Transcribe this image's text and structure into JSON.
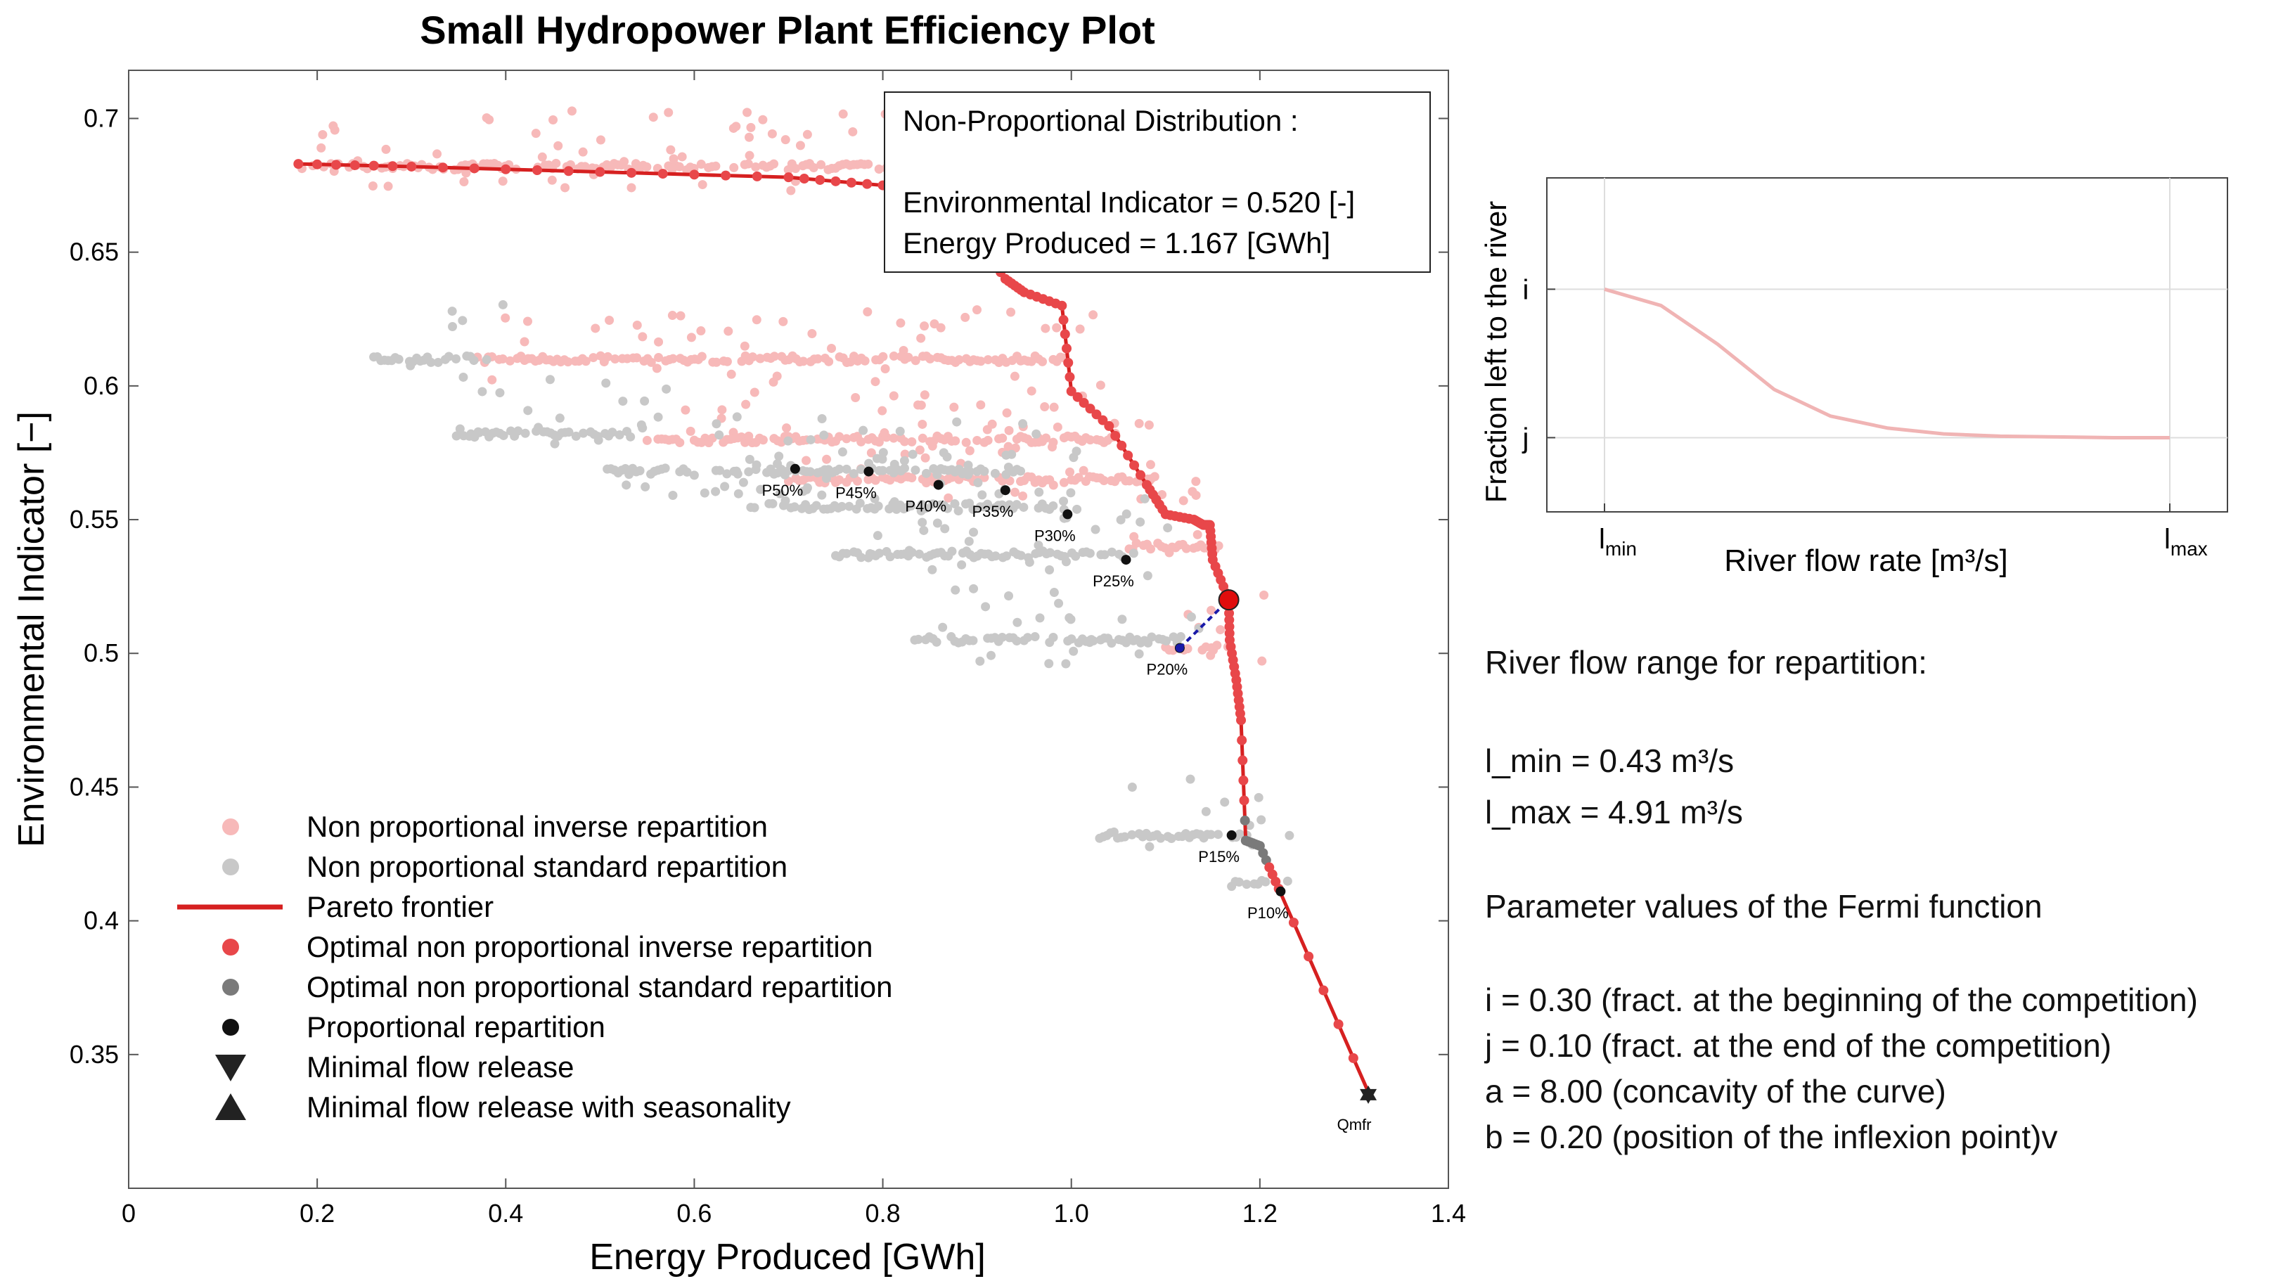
{
  "chart_data": [
    {
      "type": "scatter",
      "title": "Small Hydropower Plant Efficiency Plot",
      "xlabel": "Energy Produced [GWh]",
      "ylabel": "Environmental Indicator [−]",
      "xlim": [
        0,
        1.4
      ],
      "ylim": [
        0.3,
        0.718
      ],
      "xticks": [
        0,
        0.2,
        0.4,
        0.6,
        0.8,
        1.0,
        1.2,
        1.4
      ],
      "xtick_labels": [
        "0",
        "0.2",
        "0.4",
        "0.6",
        "0.8",
        "1.0",
        "1.2",
        "1.4"
      ],
      "yticks": [
        0.35,
        0.4,
        0.45,
        0.5,
        0.55,
        0.6,
        0.65,
        0.7
      ],
      "ytick_labels": [
        "0.35",
        "0.4",
        "0.45",
        "0.5",
        "0.55",
        "0.6",
        "0.65",
        "0.7"
      ],
      "grid": false,
      "colors": {
        "inverse": "#f7b9b9",
        "standard": "#c8c8c8",
        "pareto": "#d62020",
        "optimal_inverse": "#e8474a",
        "optimal_standard": "#7a7a7a",
        "proportional": "#111111",
        "selected": "#e00d0d",
        "connector": "#1a1aa8"
      },
      "legend": {
        "placement": "bottom-left",
        "items": [
          {
            "label": "Non proportional inverse repartition",
            "marker": "dot",
            "color": "#f7b9b9"
          },
          {
            "label": "Non proportional standard repartition",
            "marker": "dot",
            "color": "#c8c8c8"
          },
          {
            "label": "Pareto frontier",
            "marker": "line",
            "color": "#d62020"
          },
          {
            "label": "Optimal non proportional inverse repartition",
            "marker": "dot",
            "color": "#e8474a"
          },
          {
            "label": "Optimal non proportional standard repartition",
            "marker": "dot",
            "color": "#7a7a7a"
          },
          {
            "label": "Proportional repartition",
            "marker": "dot",
            "color": "#111111"
          },
          {
            "label": "Minimal flow release",
            "marker": "triangle-down",
            "color": "#222222"
          },
          {
            "label": "Minimal flow release with seasonality",
            "marker": "triangle-up",
            "color": "#222222"
          }
        ]
      },
      "annotation_box": {
        "title": "Non-Proportional Distribution :",
        "line1": "Environmental Indicator = 0.520 [-]",
        "line2": "Energy Produced = 1.167 [GWh]"
      },
      "pareto_frontier": {
        "x": [
          0.18,
          0.3,
          0.5,
          0.7,
          0.8,
          0.86,
          0.9,
          0.93,
          0.95,
          0.99,
          1.0,
          1.04,
          1.08,
          1.1,
          1.13,
          1.14,
          1.147,
          1.15,
          1.167,
          1.168,
          1.175,
          1.18,
          1.185,
          1.2,
          1.22,
          1.315
        ],
        "y": [
          0.683,
          0.682,
          0.68,
          0.678,
          0.675,
          0.668,
          0.655,
          0.64,
          0.635,
          0.63,
          0.598,
          0.585,
          0.563,
          0.552,
          0.55,
          0.548,
          0.548,
          0.535,
          0.52,
          0.505,
          0.49,
          0.475,
          0.43,
          0.428,
          0.412,
          0.336
        ]
      },
      "proportional_points": [
        {
          "label": "P50%",
          "x": 0.707,
          "y": 0.569
        },
        {
          "label": "P45%",
          "x": 0.785,
          "y": 0.568
        },
        {
          "label": "P40%",
          "x": 0.859,
          "y": 0.563
        },
        {
          "label": "P35%",
          "x": 0.93,
          "y": 0.561
        },
        {
          "label": "P30%",
          "x": 0.996,
          "y": 0.552
        },
        {
          "label": "P25%",
          "x": 1.058,
          "y": 0.535
        },
        {
          "label": "P20%",
          "x": 1.115,
          "y": 0.502
        },
        {
          "label": "P15%",
          "x": 1.17,
          "y": 0.432
        },
        {
          "label": "P10%",
          "x": 1.222,
          "y": 0.411
        }
      ],
      "minimal_flow": {
        "label": "Qmfr",
        "x": 1.315,
        "y": 0.335
      },
      "selected_point": {
        "x": 1.167,
        "y": 0.52
      },
      "inverse_repartition_bands": [
        {
          "x0": 0.18,
          "x1": 0.95,
          "y": 0.682
        },
        {
          "x0": 0.37,
          "x1": 1.0,
          "y": 0.61
        },
        {
          "x0": 0.55,
          "x1": 1.05,
          "y": 0.58
        },
        {
          "x0": 0.7,
          "x1": 1.1,
          "y": 0.565
        },
        {
          "x0": 1.05,
          "x1": 1.16,
          "y": 0.54
        },
        {
          "x0": 1.1,
          "x1": 1.17,
          "y": 0.502
        }
      ],
      "standard_repartition_bands": [
        {
          "x0": 0.26,
          "x1": 0.37,
          "y": 0.61
        },
        {
          "x0": 0.34,
          "x1": 0.54,
          "y": 0.582
        },
        {
          "x0": 0.5,
          "x1": 0.95,
          "y": 0.568
        },
        {
          "x0": 0.66,
          "x1": 1.0,
          "y": 0.555
        },
        {
          "x0": 0.75,
          "x1": 1.07,
          "y": 0.537
        },
        {
          "x0": 0.83,
          "x1": 1.12,
          "y": 0.505
        },
        {
          "x0": 1.03,
          "x1": 1.19,
          "y": 0.432
        },
        {
          "x0": 1.17,
          "x1": 1.21,
          "y": 0.414
        }
      ]
    },
    {
      "type": "line",
      "title": "",
      "xlabel": "River flow rate [m³/s]",
      "ylabel": "Fraction left to the river",
      "xtick_labels": [
        {
          "base": "l",
          "sub": "min"
        },
        {
          "base": "l",
          "sub": "max"
        }
      ],
      "ytick_labels": [
        "i",
        "j"
      ],
      "x": [
        0,
        0.1,
        0.2,
        0.3,
        0.4,
        0.5,
        0.6,
        0.7,
        0.8,
        0.9,
        1.0
      ],
      "y": [
        0.3,
        0.278,
        0.226,
        0.165,
        0.129,
        0.113,
        0.105,
        0.102,
        0.101,
        0.1,
        0.1
      ],
      "ylim": [
        0.0,
        0.45
      ],
      "line_color": "#f0b4b4"
    }
  ],
  "side_panel": {
    "range_heading": "River flow range for repartition:",
    "lmin": "l_min = 0.43 m³/s",
    "lmax": "l_max = 4.91 m³/s",
    "params_heading": "Parameter values of the Fermi function",
    "param_i": "i = 0.30 (fract. at the beginning of the competition)",
    "param_j": "j = 0.10 (fract. at the end of the competition)",
    "param_a": "a = 8.00 (concavity of the curve)",
    "param_b": "b = 0.20 (position of the inflexion point)v"
  }
}
